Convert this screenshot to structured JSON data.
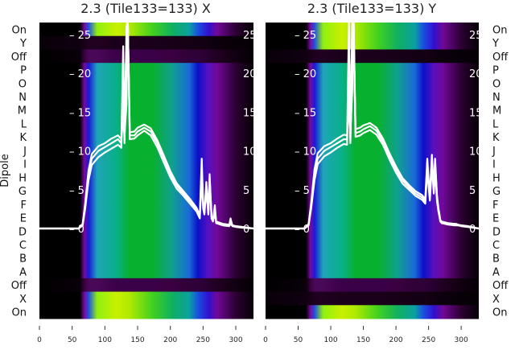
{
  "chart_data": [
    {
      "type": "heatmap",
      "title": "2.3 (Tile133=133) X",
      "ylabel": "Dipole",
      "row_labels": [
        "On",
        "Y",
        "Off",
        "P",
        "O",
        "N",
        "M",
        "L",
        "K",
        "J",
        "I",
        "H",
        "G",
        "F",
        "E",
        "D",
        "C",
        "B",
        "A",
        "Off",
        "X",
        "On"
      ],
      "row_kinds": [
        "bright",
        "dark",
        "dim",
        "n",
        "n",
        "n",
        "n",
        "n",
        "n",
        "n",
        "n",
        "n",
        "n",
        "n",
        "n",
        "n",
        "n",
        "n",
        "n",
        "dim",
        "bright",
        "bright"
      ],
      "xlim": [
        0,
        327
      ],
      "x_ticks": [
        "0",
        "50",
        "100",
        "150",
        "200",
        "250",
        "300"
      ],
      "overlay_ylim": [
        0,
        27
      ],
      "overlay_y_ticks": [
        "0",
        "5",
        "10",
        "15",
        "20",
        "25"
      ],
      "x": [
        0,
        60,
        66,
        70,
        75,
        80,
        90,
        100,
        110,
        120,
        125,
        128,
        130,
        133,
        135,
        138,
        145,
        150,
        160,
        170,
        180,
        190,
        200,
        210,
        220,
        230,
        240,
        245,
        248,
        250,
        252,
        255,
        258,
        260,
        263,
        265,
        268,
        270,
        280,
        290,
        292,
        295,
        300,
        310,
        327
      ],
      "series": [
        {
          "name": "trace-1",
          "values": [
            0,
            0,
            0.5,
            3,
            7,
            9,
            10,
            10.5,
            11,
            11.5,
            11,
            23.5,
            11.5,
            26,
            27,
            12,
            12,
            12.5,
            13,
            12.5,
            11,
            9,
            7,
            5.5,
            4.5,
            3.5,
            2.5,
            1.5,
            8,
            3,
            2,
            6,
            2,
            7,
            1.5,
            1,
            3,
            0.8,
            0.5,
            0.4,
            1.3,
            0.3,
            0.3,
            0.2,
            0
          ]
        },
        {
          "name": "trace-2",
          "values": [
            0,
            0,
            0.4,
            2.6,
            6.2,
            8.2,
            9.2,
            9.8,
            10.3,
            10.8,
            10.4,
            18,
            11,
            22,
            27,
            11.5,
            11.6,
            12,
            12.6,
            12,
            10.5,
            8.5,
            6.6,
            5.1,
            4.2,
            3.2,
            2.2,
            1.3,
            6.5,
            2.6,
            1.8,
            5,
            1.8,
            6,
            1.3,
            0.9,
            2,
            0.7,
            0.4,
            0.3,
            0.6,
            0.3,
            0.2,
            0.1,
            0
          ]
        },
        {
          "name": "trace-3",
          "values": [
            0,
            0,
            0.6,
            3.3,
            7.5,
            9.6,
            10.6,
            11,
            11.6,
            12,
            11.5,
            14,
            12,
            16,
            27,
            12.4,
            12.5,
            13,
            13.4,
            12.9,
            11.4,
            9.4,
            7.4,
            5.8,
            4.8,
            3.8,
            2.7,
            1.7,
            9,
            3.3,
            2.2,
            5.5,
            2.2,
            6.5,
            1.6,
            1.1,
            2.5,
            0.9,
            0.6,
            0.5,
            0.8,
            0.4,
            0.3,
            0.2,
            0
          ]
        }
      ]
    },
    {
      "type": "heatmap",
      "title": "2.3 (Tile133=133) Y",
      "row_labels": [
        "On",
        "Y",
        "Off",
        "P",
        "O",
        "N",
        "M",
        "L",
        "K",
        "J",
        "I",
        "H",
        "G",
        "F",
        "E",
        "D",
        "C",
        "B",
        "A",
        "Off",
        "X",
        "On"
      ],
      "row_kinds": [
        "bright",
        "bright",
        "dark",
        "n",
        "n",
        "n",
        "n",
        "n",
        "n",
        "n",
        "n",
        "n",
        "n",
        "n",
        "n",
        "n",
        "n",
        "n",
        "n",
        "dim",
        "dark",
        "bright"
      ],
      "xlim": [
        0,
        327
      ],
      "x_ticks": [
        "0",
        "50",
        "100",
        "150",
        "200",
        "250",
        "300"
      ],
      "overlay_ylim": [
        0,
        27
      ],
      "overlay_y_ticks": [
        "0",
        "5",
        "10",
        "15",
        "20",
        "25"
      ],
      "x": [
        0,
        60,
        66,
        70,
        75,
        80,
        90,
        100,
        110,
        120,
        125,
        128,
        130,
        133,
        135,
        138,
        145,
        150,
        160,
        170,
        180,
        190,
        200,
        210,
        220,
        230,
        240,
        245,
        248,
        250,
        252,
        255,
        258,
        260,
        263,
        265,
        268,
        270,
        280,
        290,
        292,
        295,
        300,
        310,
        327
      ],
      "series": [
        {
          "name": "trace-1",
          "values": [
            0,
            0,
            0.5,
            3,
            7,
            9,
            10,
            10.5,
            11,
            11.5,
            11.5,
            27,
            11.5,
            27,
            27,
            12.3,
            12.5,
            12.8,
            13.2,
            12.6,
            11.2,
            9.3,
            7.6,
            6.2,
            5.3,
            4.5,
            4,
            3.5,
            8.5,
            6,
            4,
            9,
            5,
            8.5,
            4,
            2.5,
            1,
            0.8,
            0.6,
            0.5,
            0.5,
            0.4,
            0.4,
            0.3,
            0
          ]
        },
        {
          "name": "trace-2",
          "values": [
            0,
            0,
            0.4,
            2.6,
            6.2,
            8.3,
            9.3,
            9.8,
            10.4,
            10.9,
            10.8,
            20,
            11,
            22,
            27,
            11.8,
            12,
            12.3,
            12.7,
            12.1,
            10.8,
            8.9,
            7.2,
            5.8,
            5,
            4.2,
            3.7,
            3.2,
            7.5,
            5.5,
            3.6,
            8,
            4.5,
            7.5,
            3.5,
            2.2,
            0.9,
            0.7,
            0.5,
            0.4,
            0.4,
            0.4,
            0.3,
            0.2,
            0
          ]
        },
        {
          "name": "trace-3",
          "values": [
            0,
            0,
            0.6,
            3.3,
            7.6,
            9.7,
            10.6,
            11,
            11.6,
            12.1,
            12,
            16,
            12.1,
            18,
            27,
            12.8,
            13,
            13.3,
            13.6,
            13,
            11.6,
            9.7,
            8,
            6.5,
            5.6,
            4.8,
            4.3,
            3.8,
            9,
            6.4,
            4.3,
            9.5,
            5.3,
            9,
            4.2,
            2.7,
            1.1,
            0.9,
            0.7,
            0.6,
            0.6,
            0.5,
            0.4,
            0.3,
            0
          ]
        }
      ]
    }
  ],
  "colors": {
    "normal": [
      "#000000",
      "#000000",
      "#7a0aa0",
      "#1a1ad8",
      "#1fa4b8",
      "#08b088",
      "#08b030",
      "#08b030",
      "#10a090",
      "#1a6ad8",
      "#0a10c8",
      "#5a10c0",
      "#700898",
      "#2a0030",
      "#050005"
    ],
    "bright": [
      "#000000",
      "#000000",
      "#7a0aa0",
      "#2050e0",
      "#90f010",
      "#c8f000",
      "#b0ea00",
      "#40d020",
      "#10b060",
      "#0aa0a0",
      "#1a50e0",
      "#3010d0",
      "#700898",
      "#2a0030",
      "#050005"
    ],
    "dim": [
      "#000000",
      "#0a000a",
      "#3a0040",
      "#4a0858",
      "#4a0858",
      "#3a0048",
      "#3a0048",
      "#3a0048",
      "#3a0040",
      "#300038",
      "#300038",
      "#280030",
      "#200020",
      "#100010",
      "#050005"
    ],
    "dark": [
      "#080008",
      "#100010",
      "#180018",
      "#200020",
      "#200020",
      "#1a001a",
      "#1a001a",
      "#1a001a",
      "#180018",
      "#140014",
      "#140014",
      "#100010",
      "#0c000c",
      "#080008",
      "#050005"
    ],
    "stops": [
      0,
      0.19,
      0.21,
      0.23,
      0.27,
      0.36,
      0.42,
      0.53,
      0.62,
      0.7,
      0.74,
      0.79,
      0.83,
      0.92,
      1
    ]
  }
}
